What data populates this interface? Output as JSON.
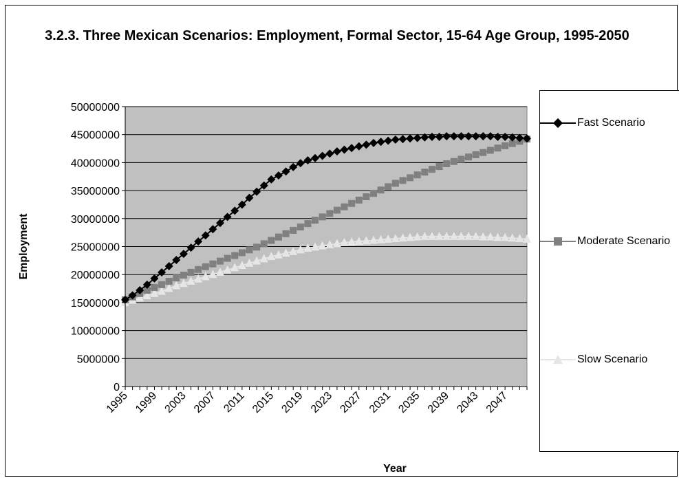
{
  "chart_data": {
    "type": "line",
    "title": "3.2.3. Three Mexican Scenarios: Employment, Formal Sector,  15-64 Age Group, 1995-2050",
    "xlabel": "Year",
    "ylabel": "Employment",
    "ylim": [
      0,
      50000000
    ],
    "yticks": [
      "0",
      "5000000",
      "10000000",
      "15000000",
      "20000000",
      "25000000",
      "30000000",
      "35000000",
      "40000000",
      "45000000",
      "50000000"
    ],
    "xticks": [
      "1995",
      "1999",
      "2003",
      "2007",
      "2011",
      "2015",
      "2019",
      "2023",
      "2027",
      "2031",
      "2035",
      "2039",
      "2043",
      "2047"
    ],
    "x": [
      1995,
      1996,
      1997,
      1998,
      1999,
      2000,
      2001,
      2002,
      2003,
      2004,
      2005,
      2006,
      2007,
      2008,
      2009,
      2010,
      2011,
      2012,
      2013,
      2014,
      2015,
      2016,
      2017,
      2018,
      2019,
      2020,
      2021,
      2022,
      2023,
      2024,
      2025,
      2026,
      2027,
      2028,
      2029,
      2030,
      2031,
      2032,
      2033,
      2034,
      2035,
      2036,
      2037,
      2038,
      2039,
      2040,
      2041,
      2042,
      2043,
      2044,
      2045,
      2046,
      2047,
      2048,
      2049,
      2050
    ],
    "grid": true,
    "plot_background": "#c0c0c0",
    "legend_position": "right",
    "series": [
      {
        "name": "Fast Scenario",
        "color": "#000000",
        "marker": "diamond",
        "values": [
          15500000,
          16300000,
          17200000,
          18200000,
          19300000,
          20400000,
          21500000,
          22600000,
          23700000,
          24800000,
          25900000,
          27000000,
          28100000,
          29200000,
          30300000,
          31400000,
          32500000,
          33700000,
          34800000,
          35900000,
          37000000,
          37700000,
          38400000,
          39200000,
          39900000,
          40400000,
          40800000,
          41200000,
          41600000,
          42000000,
          42300000,
          42600000,
          42900000,
          43200000,
          43500000,
          43700000,
          43900000,
          44100000,
          44200000,
          44300000,
          44400000,
          44500000,
          44600000,
          44600000,
          44700000,
          44700000,
          44700000,
          44700000,
          44700000,
          44700000,
          44700000,
          44600000,
          44600000,
          44500000,
          44400000,
          44300000
        ]
      },
      {
        "name": "Moderate Scenario",
        "color": "#808080",
        "marker": "square",
        "values": [
          15500000,
          16000000,
          16600000,
          17200000,
          17700000,
          18200000,
          18800000,
          19400000,
          19900000,
          20400000,
          20900000,
          21400000,
          21900000,
          22400000,
          22900000,
          23400000,
          23900000,
          24400000,
          24900000,
          25500000,
          26100000,
          26700000,
          27300000,
          27900000,
          28500000,
          29100000,
          29700000,
          30300000,
          30900000,
          31500000,
          32100000,
          32700000,
          33300000,
          33900000,
          34500000,
          35100000,
          35700000,
          36300000,
          36800000,
          37300000,
          37800000,
          38300000,
          38800000,
          39300000,
          39800000,
          40200000,
          40600000,
          41000000,
          41400000,
          41800000,
          42200000,
          42600000,
          43000000,
          43400000,
          43800000,
          44200000
        ]
      },
      {
        "name": "Slow Scenario",
        "color": "#e6e6e6",
        "marker": "triangle",
        "values": [
          15000000,
          15400000,
          15800000,
          16200000,
          16600000,
          17000000,
          17500000,
          18000000,
          18400000,
          18800000,
          19200000,
          19600000,
          20000000,
          20400000,
          20800000,
          21200000,
          21600000,
          22000000,
          22400000,
          22800000,
          23200000,
          23500000,
          23800000,
          24100000,
          24400000,
          24700000,
          24900000,
          25100000,
          25300000,
          25500000,
          25700000,
          25800000,
          25900000,
          26000000,
          26100000,
          26200000,
          26300000,
          26400000,
          26500000,
          26600000,
          26700000,
          26800000,
          26800000,
          26800000,
          26800000,
          26800000,
          26800000,
          26800000,
          26800000,
          26700000,
          26700000,
          26600000,
          26600000,
          26500000,
          26400000,
          26300000
        ]
      }
    ]
  }
}
